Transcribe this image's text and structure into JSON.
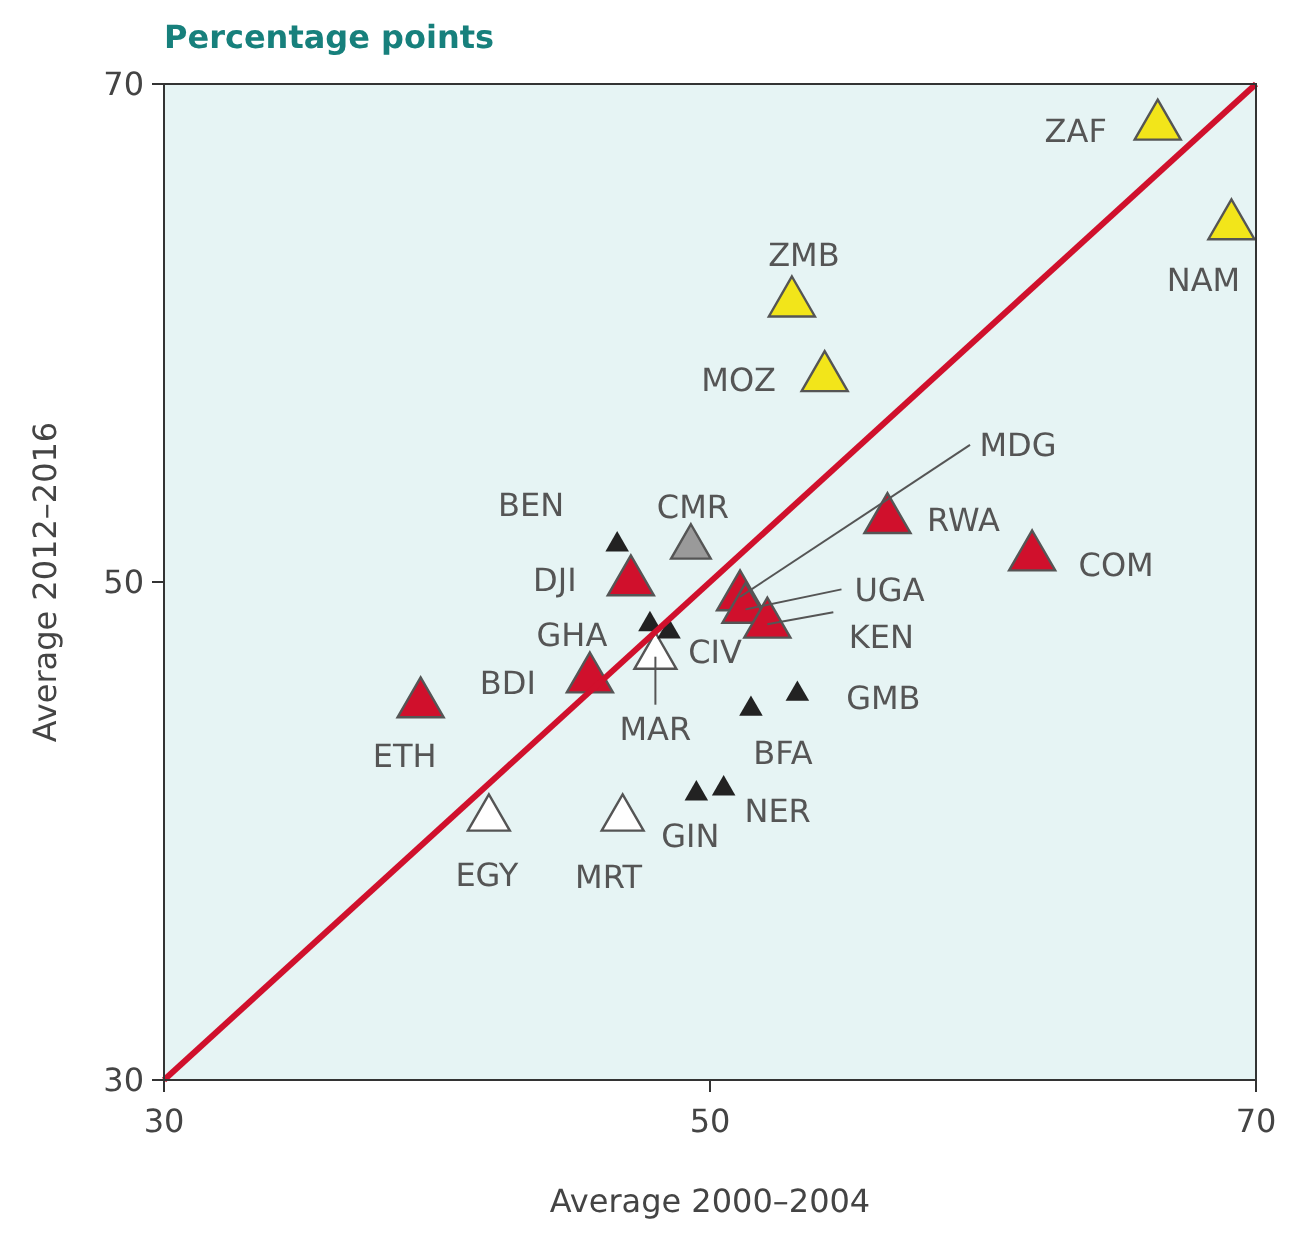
{
  "chart_data": {
    "type": "scatter",
    "title": "Percentage points",
    "xlabel": "Average 2000–2004",
    "ylabel": "Average 2012–2016",
    "xlim": [
      30,
      70
    ],
    "ylim": [
      30,
      70
    ],
    "xticks": [
      30,
      50,
      70
    ],
    "yticks": [
      30,
      50,
      70
    ],
    "grid": false,
    "marker": "triangle",
    "series": [
      {
        "color": "#f2e51a",
        "x": [
          66.4,
          69.1,
          53.0,
          54.2
        ],
        "values": [
          68.3,
          64.3,
          61.2,
          58.2
        ]
      },
      {
        "color": "#d0102c",
        "x": [
          56.5,
          61.8,
          47.1,
          45.6,
          39.4,
          51.1,
          51.3,
          52.1
        ],
        "values": [
          52.5,
          51.0,
          50.0,
          46.1,
          45.1,
          49.4,
          48.9,
          48.3
        ]
      },
      {
        "color": "#9a9a9a",
        "x": [
          49.3
        ],
        "values": [
          51.4
        ]
      },
      {
        "color": "#ffffff",
        "x": [
          48.0,
          41.9,
          46.8
        ],
        "values": [
          47.0,
          40.5,
          40.5
        ]
      },
      {
        "color": "#222222",
        "x": [
          46.6,
          47.8,
          48.5,
          53.2,
          51.5,
          49.5,
          50.5
        ],
        "values": [
          51.5,
          48.3,
          48.0,
          45.5,
          44.9,
          41.5,
          41.7
        ]
      },
      {
        "type": "line",
        "marker": "none",
        "color": "#d0102c",
        "x": [
          30,
          70
        ],
        "values": [
          30,
          70
        ]
      }
    ],
    "annotations": [
      {
        "text": "ZAF",
        "x": 66.4,
        "y": 68.3
      },
      {
        "text": "NAM",
        "x": 69.1,
        "y": 64.3
      },
      {
        "text": "ZMB",
        "x": 53.0,
        "y": 61.2
      },
      {
        "text": "MOZ",
        "x": 54.2,
        "y": 58.2
      },
      {
        "text": "RWA",
        "x": 56.5,
        "y": 52.5
      },
      {
        "text": "COM",
        "x": 61.8,
        "y": 51.0
      },
      {
        "text": "DJI",
        "x": 47.1,
        "y": 50.0
      },
      {
        "text": "BDI",
        "x": 45.6,
        "y": 46.1
      },
      {
        "text": "ETH",
        "x": 39.4,
        "y": 45.1
      },
      {
        "text": "MDG",
        "x": 51.1,
        "y": 49.4
      },
      {
        "text": "UGA",
        "x": 51.3,
        "y": 48.9
      },
      {
        "text": "KEN",
        "x": 52.1,
        "y": 48.3
      },
      {
        "text": "CMR",
        "x": 49.3,
        "y": 51.4
      },
      {
        "text": "BEN",
        "x": 46.6,
        "y": 51.5
      },
      {
        "text": "GHA",
        "x": 47.8,
        "y": 48.3
      },
      {
        "text": "CIV",
        "x": 48.5,
        "y": 48.0
      },
      {
        "text": "MAR",
        "x": 48.0,
        "y": 47.0
      },
      {
        "text": "GMB",
        "x": 53.2,
        "y": 45.5
      },
      {
        "text": "BFA",
        "x": 51.5,
        "y": 44.9
      },
      {
        "text": "GIN",
        "x": 49.5,
        "y": 41.5
      },
      {
        "text": "NER",
        "x": 50.5,
        "y": 41.7
      },
      {
        "text": "EGY",
        "x": 41.9,
        "y": 40.5
      },
      {
        "text": "MRT",
        "x": 46.8,
        "y": 40.5
      }
    ]
  }
}
